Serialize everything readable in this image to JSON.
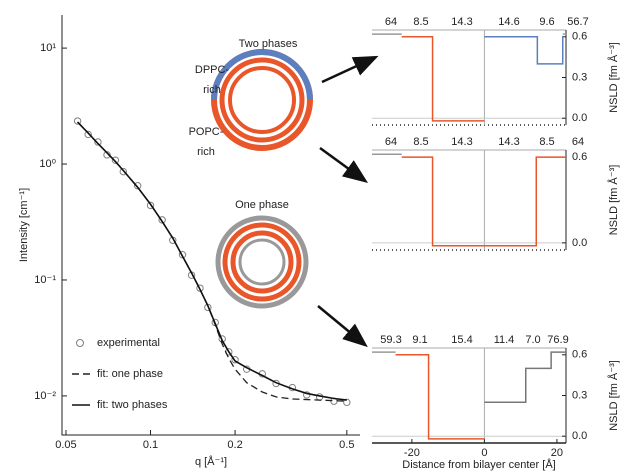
{
  "chart_data": [
    {
      "type": "line",
      "xlabel": "q [Å⁻¹]",
      "ylabel": "Intensity [cm⁻¹]",
      "xscale": "log",
      "yscale": "log",
      "xlim": [
        0.0484,
        0.557
      ],
      "ylim": [
        0.0046,
        19.3
      ],
      "xticks": [
        0.05,
        0.1,
        0.2,
        0.5
      ],
      "yticks": [
        {
          "value": 0.01,
          "label": "10⁻²"
        },
        {
          "value": 0.1,
          "label": "10⁻¹"
        },
        {
          "value": 1,
          "label": "10⁰"
        },
        {
          "value": 10,
          "label": "10¹"
        }
      ],
      "legend": "lower left",
      "x": [
        0.055,
        0.06,
        0.065,
        0.07,
        0.075,
        0.08,
        0.09,
        0.1,
        0.11,
        0.12,
        0.13,
        0.14,
        0.15,
        0.16,
        0.17,
        0.18,
        0.19,
        0.2,
        0.22,
        0.25,
        0.28,
        0.32,
        0.36,
        0.4,
        0.45,
        0.5
      ],
      "series": [
        {
          "name": "experimental",
          "color": "#808080",
          "marker": "circle",
          "values": [
            2.35,
            1.8,
            1.55,
            1.2,
            1.08,
            0.86,
            0.65,
            0.44,
            0.33,
            0.22,
            0.165,
            0.11,
            0.085,
            0.058,
            0.043,
            0.031,
            0.024,
            0.0205,
            0.017,
            0.0155,
            0.0128,
            0.0118,
            0.0102,
            0.0098,
            0.009,
            0.0088
          ]
        },
        {
          "name": "fit: one phase",
          "color": "#222222",
          "dash": true,
          "values": [
            2.3,
            1.85,
            1.5,
            1.25,
            1.05,
            0.88,
            0.63,
            0.45,
            0.32,
            0.23,
            0.16,
            0.115,
            0.083,
            0.06,
            0.041,
            0.028,
            0.021,
            0.017,
            0.013,
            0.0108,
            0.0098,
            0.0094,
            0.0093,
            0.0092,
            0.0091,
            0.009
          ]
        },
        {
          "name": "fit: two phases",
          "color": "#111111",
          "values": [
            2.3,
            1.85,
            1.5,
            1.25,
            1.05,
            0.88,
            0.63,
            0.45,
            0.32,
            0.23,
            0.16,
            0.115,
            0.083,
            0.06,
            0.042,
            0.03,
            0.024,
            0.02,
            0.0175,
            0.015,
            0.013,
            0.0115,
            0.0105,
            0.01,
            0.0095,
            0.0092
          ]
        }
      ],
      "annotations": [
        "Two phases",
        "DPPC-",
        "rich",
        "POPC-",
        "rich",
        "One phase"
      ]
    },
    {
      "type": "line",
      "ylabel": "NSLD [fm Å⁻³]",
      "xlim": [
        -31,
        22.5
      ],
      "ylim": [
        -0.05,
        0.65
      ],
      "yticks": [
        {
          "value": 0,
          "label": "0.0"
        },
        0.3,
        0.6
      ],
      "layer_labels": [
        "64",
        "8.5",
        "14.3",
        "14.6",
        "9.6",
        "56.7"
      ],
      "series": [
        {
          "color": "#999999",
          "x": [
            -31,
            -22.8
          ],
          "values": [
            0.62,
            0.62
          ]
        },
        {
          "color": "#e8562a",
          "x": [
            -22.8,
            -14.3,
            -14.3,
            0
          ],
          "values": [
            0.6,
            0.6,
            -0.02,
            -0.02
          ]
        },
        {
          "color": "#5b7fbf",
          "x": [
            0,
            14.6,
            14.6,
            21.6,
            21.6
          ],
          "values": [
            0.6,
            0.6,
            0.4,
            0.4,
            0.6
          ]
        },
        {
          "color": "#999999",
          "x": [
            21.6,
            22.5
          ],
          "values": [
            0.62,
            0.62
          ]
        }
      ]
    },
    {
      "type": "line",
      "ylabel": "NSLD [fm Å⁻³]",
      "xlim": [
        -31,
        22.5
      ],
      "ylim": [
        -0.05,
        0.65
      ],
      "yticks": [
        {
          "value": 0,
          "label": "0.0"
        },
        0.6
      ],
      "layer_labels": [
        "64",
        "8.5",
        "14.3",
        "14.3",
        "8.5",
        "64"
      ],
      "series": [
        {
          "color": "#999999",
          "x": [
            -31,
            -22.8
          ],
          "values": [
            0.62,
            0.62
          ]
        },
        {
          "color": "#e8562a",
          "x": [
            -22.8,
            -14.3,
            -14.3,
            0
          ],
          "values": [
            0.6,
            0.6,
            -0.02,
            -0.02
          ]
        },
        {
          "color": "#e8562a",
          "x": [
            0,
            14.3,
            14.3,
            22.5
          ],
          "values": [
            -0.02,
            -0.02,
            0.6,
            0.6
          ]
        }
      ]
    },
    {
      "type": "line",
      "ylabel": "NSLD [fm Å⁻³]",
      "xlabel": "Distance from bilayer center [Å]",
      "xlim": [
        -31,
        22.5
      ],
      "ylim": [
        -0.05,
        0.65
      ],
      "xticks": [
        -20,
        0,
        20
      ],
      "yticks": [
        {
          "value": 0,
          "label": "0.0"
        },
        0.3,
        0.6
      ],
      "layer_labels": [
        "59.3",
        "9.1",
        "15.4",
        "11.4",
        "7.0",
        "76.9"
      ],
      "series": [
        {
          "color": "#999999",
          "x": [
            -31,
            -24.5
          ],
          "values": [
            0.62,
            0.62
          ]
        },
        {
          "color": "#e8562a",
          "x": [
            -24.5,
            -15.4,
            -15.4,
            0
          ],
          "values": [
            0.6,
            0.6,
            -0.02,
            -0.02
          ]
        },
        {
          "color": "#777777",
          "x": [
            0,
            11.4,
            11.4,
            18.4,
            18.4,
            22.5
          ],
          "values": [
            0.25,
            0.25,
            0.5,
            0.5,
            0.62,
            0.62
          ]
        }
      ]
    }
  ]
}
